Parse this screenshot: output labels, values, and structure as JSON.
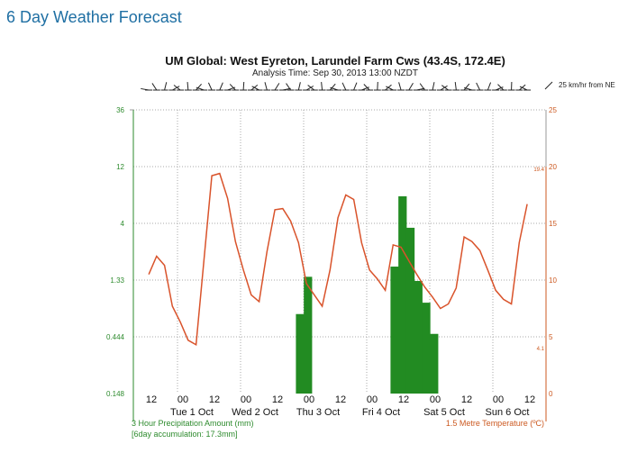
{
  "page": {
    "title": "6 Day Weather Forecast"
  },
  "chart_data": {
    "type": "bar+line",
    "title": "UM Global: West Eyreton, Larundel Farm Cws (43.4S, 172.4E)",
    "subtitle": "Analysis Time: Sep 30, 2013 13:00 NZDT",
    "wind_legend": "25 km/hr from NE",
    "x_time_ticks": [
      "12",
      "00",
      "12",
      "00",
      "12",
      "00",
      "12",
      "00",
      "12",
      "00",
      "12",
      "00",
      "12"
    ],
    "x_day_labels": [
      "Tue 1 Oct",
      "Wed 2 Oct",
      "Thu 3 Oct",
      "Fri 4 Oct",
      "Sat 5 Oct",
      "Sun 6 Oct"
    ],
    "left_axis": {
      "label": "3 Hour Precipitation Amount (mm)",
      "note": "[6day accumulation: 17.3mm]",
      "scale": "log",
      "ticks": [
        "0.148",
        "0.444",
        "1.33",
        "4",
        "12",
        "36"
      ],
      "ylim": [
        0.148,
        36
      ]
    },
    "right_axis": {
      "label": "1.5 Metre Temperature (ºC)",
      "ticks": [
        "0",
        "5",
        "10",
        "15",
        "20",
        "25"
      ],
      "ylim": [
        0,
        25
      ],
      "max_marker": "19.4",
      "min_marker": "4.1"
    },
    "hours_note": "hours measured from Sep 30 12:00",
    "temperature": {
      "start_hour": -1,
      "step_hours": 3,
      "values": [
        10.5,
        12.1,
        11.3,
        7.7,
        6.3,
        4.7,
        4.3,
        11.7,
        19.2,
        19.4,
        17.2,
        13.4,
        10.9,
        8.7,
        8.1,
        12.5,
        16.2,
        16.3,
        15.2,
        13.3,
        9.7,
        8.7,
        7.7,
        10.9,
        15.5,
        17.5,
        17.1,
        13.3,
        10.9,
        10.1,
        9.1,
        13.1,
        12.9,
        11.7,
        10.5,
        9.4,
        8.5,
        7.5,
        7.9,
        9.3,
        13.8,
        13.4,
        12.6,
        10.9,
        9.1,
        8.3,
        7.9,
        13.3,
        16.7
      ]
    },
    "precipitation": {
      "bar_hours": 3,
      "bars": [
        {
          "start_hour": 55,
          "value": 0.69
        },
        {
          "start_hour": 58,
          "value": 1.42
        },
        {
          "start_hour": 91,
          "value": 1.73
        },
        {
          "start_hour": 94,
          "value": 6.75
        },
        {
          "start_hour": 97,
          "value": 3.67
        },
        {
          "start_hour": 100,
          "value": 1.31
        },
        {
          "start_hour": 103,
          "value": 0.86
        },
        {
          "start_hour": 106,
          "value": 0.47
        }
      ]
    },
    "colors": {
      "precip": "#228b22",
      "temp": "#d9532b",
      "left_axis": "#2e8b2e",
      "right_axis": "#cc5a22"
    }
  }
}
